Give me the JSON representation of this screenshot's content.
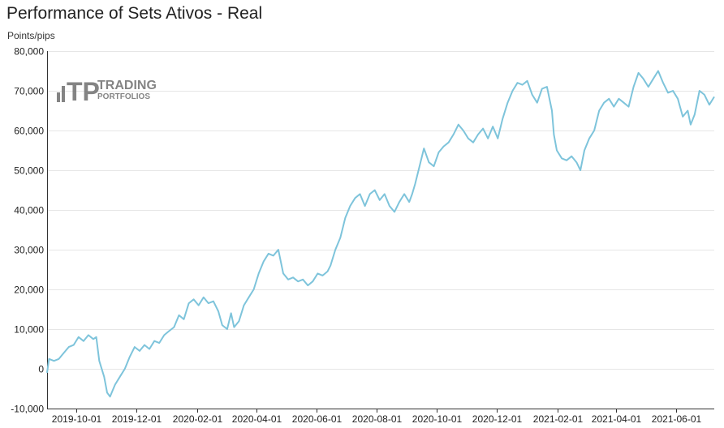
{
  "header": {
    "title": "Performance of Sets Ativos - Real",
    "unit": "Points/pips"
  },
  "watermark": {
    "mark": "TP",
    "line1": "TRADING",
    "line2": "PORTFOLIOS"
  },
  "colors": {
    "line": "#7ec4db",
    "grid": "#e6e6e6",
    "axis": "#333333",
    "text": "#222222"
  },
  "chart_data": {
    "type": "line",
    "title": "Performance of Sets Ativos - Real",
    "xlabel": "",
    "ylabel": "Points/pips",
    "ylim": [
      -10000,
      80000
    ],
    "xlim": [
      "2019-09-01",
      "2021-07-10"
    ],
    "grid": true,
    "y_ticks": [
      -10000,
      0,
      10000,
      20000,
      30000,
      40000,
      50000,
      60000,
      70000,
      80000
    ],
    "y_tick_labels": [
      "-10,000",
      "0",
      "10,000",
      "20,000",
      "30,000",
      "40,000",
      "50,000",
      "60,000",
      "70,000",
      "80,000"
    ],
    "x_ticks": [
      "2019-10-01",
      "2019-12-01",
      "2020-02-01",
      "2020-04-01",
      "2020-06-01",
      "2020-08-01",
      "2020-10-01",
      "2020-12-01",
      "2021-02-01",
      "2021-04-01",
      "2021-06-01"
    ],
    "series": [
      {
        "points": [
          [
            "2019-09-01",
            -1000
          ],
          [
            "2019-09-03",
            2500
          ],
          [
            "2019-09-08",
            2000
          ],
          [
            "2019-09-13",
            2500
          ],
          [
            "2019-09-18",
            4000
          ],
          [
            "2019-09-23",
            5500
          ],
          [
            "2019-09-28",
            6000
          ],
          [
            "2019-10-03",
            8000
          ],
          [
            "2019-10-08",
            7000
          ],
          [
            "2019-10-13",
            8500
          ],
          [
            "2019-10-18",
            7500
          ],
          [
            "2019-10-21",
            8000
          ],
          [
            "2019-10-24",
            2000
          ],
          [
            "2019-10-29",
            -2000
          ],
          [
            "2019-11-01",
            -6000
          ],
          [
            "2019-11-04",
            -7000
          ],
          [
            "2019-11-09",
            -4000
          ],
          [
            "2019-11-14",
            -2000
          ],
          [
            "2019-11-19",
            0
          ],
          [
            "2019-11-24",
            3000
          ],
          [
            "2019-11-29",
            5500
          ],
          [
            "2019-12-04",
            4500
          ],
          [
            "2019-12-09",
            6000
          ],
          [
            "2019-12-14",
            5000
          ],
          [
            "2019-12-19",
            7000
          ],
          [
            "2019-12-24",
            6500
          ],
          [
            "2019-12-29",
            8500
          ],
          [
            "2020-01-03",
            9500
          ],
          [
            "2020-01-08",
            10500
          ],
          [
            "2020-01-13",
            13500
          ],
          [
            "2020-01-18",
            12500
          ],
          [
            "2020-01-23",
            16500
          ],
          [
            "2020-01-28",
            17500
          ],
          [
            "2020-02-02",
            16000
          ],
          [
            "2020-02-07",
            18000
          ],
          [
            "2020-02-12",
            16500
          ],
          [
            "2020-02-17",
            17000
          ],
          [
            "2020-02-22",
            14500
          ],
          [
            "2020-02-26",
            11000
          ],
          [
            "2020-03-02",
            10000
          ],
          [
            "2020-03-06",
            14000
          ],
          [
            "2020-03-09",
            10500
          ],
          [
            "2020-03-14",
            12000
          ],
          [
            "2020-03-19",
            16000
          ],
          [
            "2020-03-24",
            18000
          ],
          [
            "2020-03-29",
            20000
          ],
          [
            "2020-04-03",
            24000
          ],
          [
            "2020-04-08",
            27000
          ],
          [
            "2020-04-13",
            29000
          ],
          [
            "2020-04-18",
            28500
          ],
          [
            "2020-04-23",
            30000
          ],
          [
            "2020-04-28",
            24000
          ],
          [
            "2020-05-03",
            22500
          ],
          [
            "2020-05-08",
            23000
          ],
          [
            "2020-05-13",
            22000
          ],
          [
            "2020-05-18",
            22500
          ],
          [
            "2020-05-23",
            21000
          ],
          [
            "2020-05-28",
            22000
          ],
          [
            "2020-06-02",
            24000
          ],
          [
            "2020-06-07",
            23500
          ],
          [
            "2020-06-12",
            24500
          ],
          [
            "2020-06-15",
            26000
          ],
          [
            "2020-06-20",
            30000
          ],
          [
            "2020-06-25",
            33000
          ],
          [
            "2020-06-30",
            38000
          ],
          [
            "2020-07-05",
            41000
          ],
          [
            "2020-07-10",
            43000
          ],
          [
            "2020-07-15",
            44000
          ],
          [
            "2020-07-20",
            41000
          ],
          [
            "2020-07-25",
            44000
          ],
          [
            "2020-07-30",
            45000
          ],
          [
            "2020-08-04",
            42500
          ],
          [
            "2020-08-09",
            44000
          ],
          [
            "2020-08-14",
            41000
          ],
          [
            "2020-08-19",
            39500
          ],
          [
            "2020-08-24",
            42000
          ],
          [
            "2020-08-29",
            44000
          ],
          [
            "2020-09-03",
            42000
          ],
          [
            "2020-09-06",
            44000
          ],
          [
            "2020-09-09",
            46500
          ],
          [
            "2020-09-14",
            51500
          ],
          [
            "2020-09-18",
            55500
          ],
          [
            "2020-09-23",
            52000
          ],
          [
            "2020-09-28",
            51000
          ],
          [
            "2020-10-03",
            54500
          ],
          [
            "2020-10-08",
            56000
          ],
          [
            "2020-10-13",
            57000
          ],
          [
            "2020-10-18",
            59000
          ],
          [
            "2020-10-23",
            61500
          ],
          [
            "2020-10-28",
            60000
          ],
          [
            "2020-11-02",
            58000
          ],
          [
            "2020-11-07",
            57000
          ],
          [
            "2020-11-12",
            59000
          ],
          [
            "2020-11-17",
            60500
          ],
          [
            "2020-11-22",
            58000
          ],
          [
            "2020-11-27",
            61000
          ],
          [
            "2020-12-02",
            58000
          ],
          [
            "2020-12-07",
            63000
          ],
          [
            "2020-12-12",
            67000
          ],
          [
            "2020-12-17",
            70000
          ],
          [
            "2020-12-22",
            72000
          ],
          [
            "2020-12-27",
            71500
          ],
          [
            "2021-01-01",
            72500
          ],
          [
            "2021-01-06",
            69000
          ],
          [
            "2021-01-11",
            67000
          ],
          [
            "2021-01-16",
            70500
          ],
          [
            "2021-01-21",
            71000
          ],
          [
            "2021-01-26",
            65000
          ],
          [
            "2021-01-28",
            59000
          ],
          [
            "2021-01-31",
            55000
          ],
          [
            "2021-02-05",
            53000
          ],
          [
            "2021-02-10",
            52500
          ],
          [
            "2021-02-15",
            53500
          ],
          [
            "2021-02-20",
            52000
          ],
          [
            "2021-02-24",
            50000
          ],
          [
            "2021-02-28",
            55000
          ],
          [
            "2021-03-05",
            58000
          ],
          [
            "2021-03-10",
            60000
          ],
          [
            "2021-03-15",
            65000
          ],
          [
            "2021-03-20",
            67000
          ],
          [
            "2021-03-25",
            68000
          ],
          [
            "2021-03-30",
            66000
          ],
          [
            "2021-04-04",
            68000
          ],
          [
            "2021-04-09",
            67000
          ],
          [
            "2021-04-14",
            66000
          ],
          [
            "2021-04-19",
            71000
          ],
          [
            "2021-04-24",
            74500
          ],
          [
            "2021-04-29",
            73000
          ],
          [
            "2021-05-04",
            71000
          ],
          [
            "2021-05-09",
            73000
          ],
          [
            "2021-05-14",
            75000
          ],
          [
            "2021-05-19",
            72000
          ],
          [
            "2021-05-24",
            69500
          ],
          [
            "2021-05-29",
            70000
          ],
          [
            "2021-06-03",
            68000
          ],
          [
            "2021-06-08",
            63500
          ],
          [
            "2021-06-13",
            65000
          ],
          [
            "2021-06-16",
            61500
          ],
          [
            "2021-06-20",
            64000
          ],
          [
            "2021-06-25",
            70000
          ],
          [
            "2021-06-30",
            69000
          ],
          [
            "2021-07-05",
            66500
          ],
          [
            "2021-07-10",
            68500
          ]
        ]
      }
    ]
  }
}
